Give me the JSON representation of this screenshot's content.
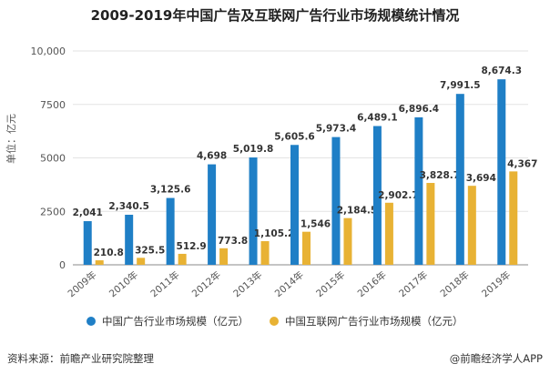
{
  "colors": {
    "series1": "#1f7fc6",
    "series2": "#e8b234",
    "grid": "#e3e3e3",
    "axis": "#888888"
  },
  "chart_data": {
    "type": "bar",
    "title": "2009-2019年中国广告及互联网广告行业市场规模统计情况",
    "xlabel": "",
    "ylabel": "单位：亿元",
    "ylim": [
      0,
      10000
    ],
    "yticks": [
      "0",
      "2500",
      "5000",
      "7500",
      "10,000"
    ],
    "ytick_values": [
      0,
      2500,
      5000,
      7500,
      10000
    ],
    "categories": [
      "2009年",
      "2010年",
      "2011年",
      "2012年",
      "2013年",
      "2014年",
      "2015年",
      "2016年",
      "2017年",
      "2018年",
      "2019年"
    ],
    "series": [
      {
        "name": "中国广告行业市场规模（亿元）",
        "values": [
          2041,
          2340.5,
          3125.6,
          4698,
          5019.8,
          5605.6,
          5973.4,
          6489.1,
          6896.4,
          7991.5,
          8674.3
        ],
        "labels": [
          "2,041",
          "2,340.5",
          "3,125.6",
          "4,698",
          "5,019.8",
          "5,605.6",
          "5,973.4",
          "6,489.1",
          "6,896.4",
          "7,991.5",
          "8,674.3"
        ]
      },
      {
        "name": "中国互联网广告行业市场规模（亿元）",
        "values": [
          210.8,
          325.5,
          512.9,
          773.8,
          1105.2,
          1546,
          2184.5,
          2902.7,
          3828.7,
          3694,
          4367
        ],
        "labels": [
          "210.8",
          "325.5",
          "512.9",
          "773.8",
          "1,105.2",
          "1,546",
          "2,184.5",
          "2,902.7",
          "3,828.7",
          "3,694",
          "4,367"
        ]
      }
    ],
    "legend_position": "bottom-center"
  },
  "footer": {
    "source": "资料来源：前瞻产业研究院整理",
    "credit": "@前瞻经济学人APP"
  }
}
